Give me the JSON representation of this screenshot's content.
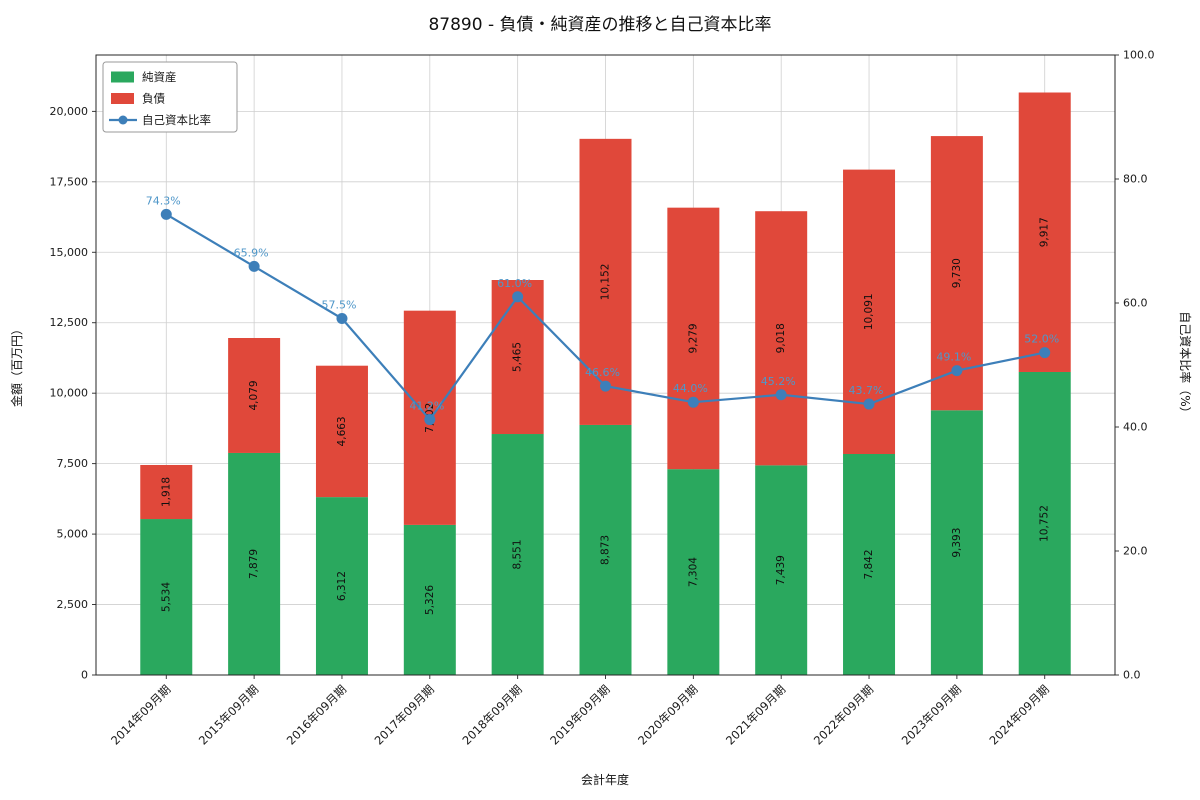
{
  "chart_data": {
    "type": "bar",
    "subtype": "stacked-bars-with-line",
    "title": "87890 - 負債・純資産の推移と自己資本比率",
    "xlabel": "会計年度",
    "ylabel_left": "金額（百万円）",
    "ylabel_right": "自己資本比率（%）",
    "categories": [
      "2014年09月期",
      "2015年09月期",
      "2016年09月期",
      "2017年09月期",
      "2018年09月期",
      "2019年09月期",
      "2020年09月期",
      "2021年09月期",
      "2022年09月期",
      "2023年09月期",
      "2024年09月期"
    ],
    "series": [
      {
        "name": "純資産",
        "type": "bar",
        "axis": "left",
        "color": "#2aa85e",
        "values": [
          5534,
          7879,
          6312,
          5326,
          8551,
          8873,
          7304,
          7439,
          7842,
          9393,
          10752
        ],
        "value_labels": [
          "5,534",
          "7,879",
          "6,312",
          "5,326",
          "8,551",
          "8,873",
          "7,304",
          "7,439",
          "7,842",
          "9,393",
          "10,752"
        ]
      },
      {
        "name": "負債",
        "type": "bar",
        "axis": "left",
        "color": "#e0483a",
        "values": [
          1918,
          4079,
          4663,
          7602,
          5465,
          10152,
          9279,
          9018,
          10091,
          9730,
          9917
        ],
        "value_labels": [
          "1,918",
          "4,079",
          "4,663",
          "7,602",
          "5,465",
          "10,152",
          "9,279",
          "9,018",
          "10,091",
          "9,730",
          "9,917"
        ]
      },
      {
        "name": "自己資本比率",
        "type": "line",
        "axis": "right",
        "color": "#3d7fb9",
        "label_color": "#4f97c9",
        "values": [
          74.3,
          65.9,
          57.5,
          41.2,
          61.0,
          46.6,
          44.0,
          45.2,
          43.7,
          49.1,
          52.0
        ],
        "point_labels": [
          "74.3%",
          "65.9%",
          "57.5%",
          "41.2%",
          "61.0%",
          "46.6%",
          "44.0%",
          "45.2%",
          "43.7%",
          "49.1%",
          "52.0%"
        ]
      }
    ],
    "y_left": {
      "max": 22000,
      "tick_values": [
        0,
        2500,
        5000,
        7500,
        10000,
        12500,
        15000,
        17500,
        20000
      ],
      "tick_labels": [
        "0",
        "2,500",
        "5,000",
        "7,500",
        "10,000",
        "12,500",
        "15,000",
        "17,500",
        "20,000"
      ]
    },
    "y_right": {
      "max": 100,
      "tick_values": [
        0,
        20,
        40,
        60,
        80,
        100
      ],
      "tick_labels": [
        "0.0",
        "20.0",
        "40.0",
        "60.0",
        "80.0",
        "100.0"
      ]
    },
    "legend": {
      "position": "upper-left",
      "entries": [
        "純資産",
        "負債",
        "自己資本比率"
      ]
    },
    "grid": true
  }
}
